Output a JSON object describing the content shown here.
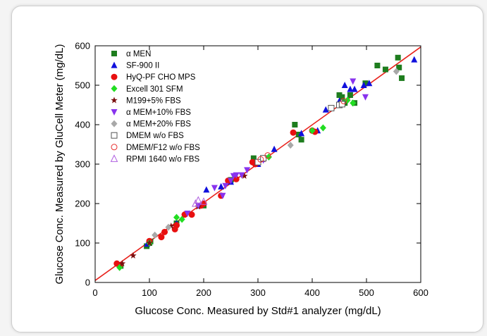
{
  "chart_data": {
    "type": "scatter",
    "title": "",
    "xlabel": "Glucose Conc. Measured by Std#1 analyzer (mg/dL)",
    "ylabel": "Glucose Conc. Measured by GluCell Meter (mg/dL)",
    "xlim": [
      0,
      600
    ],
    "ylim": [
      0,
      600
    ],
    "xticks": [
      "0",
      "100",
      "200",
      "300",
      "400",
      "500",
      "600"
    ],
    "yticks": [
      "0",
      "100",
      "200",
      "300",
      "400",
      "500",
      "600"
    ],
    "grid": false,
    "legend_position": "top-left",
    "fit_line": {
      "x": [
        0,
        600
      ],
      "y": [
        5,
        597
      ],
      "color": "#e8211b"
    },
    "series": [
      {
        "name": "α MEN",
        "marker": "square",
        "color": "#1e7d1e",
        "points": [
          [
            47,
            42
          ],
          [
            95,
            92
          ],
          [
            100,
            100
          ],
          [
            102,
            104
          ],
          [
            150,
            150
          ],
          [
            200,
            195
          ],
          [
            250,
            260
          ],
          [
            292,
            315
          ],
          [
            297,
            305
          ],
          [
            368,
            400
          ],
          [
            375,
            375
          ],
          [
            380,
            362
          ],
          [
            450,
            475
          ],
          [
            455,
            470
          ],
          [
            460,
            455
          ],
          [
            470,
            475
          ],
          [
            478,
            455
          ],
          [
            498,
            505
          ],
          [
            520,
            550
          ],
          [
            535,
            540
          ],
          [
            558,
            570
          ],
          [
            560,
            545
          ],
          [
            565,
            518
          ]
        ]
      },
      {
        "name": "SF-900 II",
        "marker": "triangle-up",
        "color": "#1010dd",
        "points": [
          [
            96,
            98
          ],
          [
            150,
            150
          ],
          [
            205,
            235
          ],
          [
            232,
            243
          ],
          [
            250,
            255
          ],
          [
            300,
            300
          ],
          [
            330,
            338
          ],
          [
            380,
            378
          ],
          [
            410,
            385
          ],
          [
            425,
            438
          ],
          [
            450,
            460
          ],
          [
            460,
            500
          ],
          [
            470,
            490
          ],
          [
            478,
            490
          ],
          [
            495,
            500
          ],
          [
            505,
            505
          ],
          [
            588,
            565
          ]
        ]
      },
      {
        "name": "HyQ-PF CHO MPS",
        "marker": "circle",
        "color": "#e81010",
        "points": [
          [
            40,
            48
          ],
          [
            45,
            43
          ],
          [
            100,
            105
          ],
          [
            122,
            115
          ],
          [
            128,
            128
          ],
          [
            147,
            135
          ],
          [
            150,
            145
          ],
          [
            165,
            172
          ],
          [
            178,
            172
          ],
          [
            195,
            195
          ],
          [
            200,
            200
          ],
          [
            232,
            220
          ],
          [
            245,
            258
          ],
          [
            260,
            262
          ],
          [
            290,
            305
          ],
          [
            295,
            300
          ],
          [
            365,
            380
          ],
          [
            400,
            385
          ],
          [
            405,
            382
          ]
        ]
      },
      {
        "name": "Excell 301 SFM",
        "marker": "diamond",
        "color": "#22dd22",
        "points": [
          [
            45,
            38
          ],
          [
            100,
            100
          ],
          [
            150,
            165
          ],
          [
            160,
            160
          ],
          [
            320,
            318
          ],
          [
            400,
            385
          ],
          [
            420,
            392
          ],
          [
            465,
            462
          ],
          [
            475,
            455
          ]
        ]
      },
      {
        "name": "M199+5% FBS",
        "marker": "star",
        "color": "#7a1010",
        "points": [
          [
            50,
            48
          ],
          [
            70,
            68
          ],
          [
            100,
            100
          ],
          [
            140,
            143
          ],
          [
            190,
            192
          ],
          [
            275,
            270
          ],
          [
            310,
            312
          ]
        ]
      },
      {
        "name": "α MEM+10% FBS",
        "marker": "triangle-down",
        "color": "#8833ee",
        "points": [
          [
            170,
            175
          ],
          [
            190,
            195
          ],
          [
            220,
            240
          ],
          [
            235,
            220
          ],
          [
            240,
            245
          ],
          [
            250,
            258
          ],
          [
            255,
            270
          ],
          [
            260,
            272
          ],
          [
            270,
            272
          ],
          [
            280,
            285
          ],
          [
            310,
            310
          ],
          [
            475,
            510
          ],
          [
            498,
            470
          ]
        ]
      },
      {
        "name": "α MEM+20% FBS",
        "marker": "diamond",
        "color": "#a8a8a8",
        "points": [
          [
            110,
            120
          ],
          [
            135,
            140
          ],
          [
            360,
            348
          ],
          [
            555,
            535
          ]
        ]
      },
      {
        "name": "DMEM w/o FBS",
        "marker": "square-open",
        "color": "#555555",
        "points": [
          [
            300,
            305
          ],
          [
            310,
            315
          ],
          [
            435,
            442
          ],
          [
            450,
            450
          ],
          [
            455,
            452
          ]
        ]
      },
      {
        "name": "DMEM/F12 w/o FBS",
        "marker": "circle-open",
        "color": "#e83030",
        "points": [
          [
            305,
            312
          ],
          [
            318,
            322
          ],
          [
            458,
            460
          ]
        ]
      },
      {
        "name": "RPMI 1640 w/o FBS",
        "marker": "triangle-open",
        "color": "#b060e0",
        "points": [
          [
            185,
            200
          ],
          [
            190,
            208
          ],
          [
            200,
            205
          ]
        ]
      }
    ]
  }
}
